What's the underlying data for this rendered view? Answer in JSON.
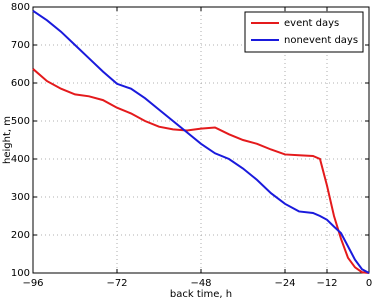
{
  "chart_data": {
    "type": "line",
    "x_label": "back time, h",
    "y_label": "height, m",
    "x": [
      -96,
      -92,
      -88,
      -84,
      -80,
      -76,
      -72,
      -68,
      -64,
      -60,
      -56,
      -52,
      -48,
      -44,
      -40,
      -36,
      -32,
      -28,
      -24,
      -20,
      -16,
      -14,
      -12,
      -10,
      -8,
      -6,
      -4,
      -2,
      0
    ],
    "series": [
      {
        "name": "event days",
        "color": "#e41a1c",
        "values": [
          637,
          605,
          585,
          570,
          565,
          555,
          535,
          520,
          500,
          485,
          478,
          475,
          480,
          483,
          465,
          450,
          440,
          425,
          412,
          410,
          408,
          400,
          330,
          250,
          190,
          140,
          115,
          102,
          100
        ]
      },
      {
        "name": "nonevent days",
        "color": "#1a1adc",
        "values": [
          790,
          765,
          735,
          700,
          665,
          630,
          598,
          585,
          560,
          530,
          500,
          470,
          440,
          415,
          400,
          375,
          345,
          310,
          282,
          262,
          258,
          250,
          240,
          222,
          205,
          170,
          135,
          110,
          100
        ]
      }
    ],
    "xlim": [
      -96,
      0
    ],
    "ylim": [
      100,
      800
    ],
    "xticks": [
      {
        "value": -96,
        "label": "−96"
      },
      {
        "value": -72,
        "label": "−72"
      },
      {
        "value": -48,
        "label": "−48"
      },
      {
        "value": -24,
        "label": "−24"
      },
      {
        "value": -12,
        "label": "−12"
      },
      0
    ],
    "yticks": [
      100,
      200,
      300,
      400,
      500,
      600,
      700,
      800
    ],
    "grid": true,
    "legend": "upper right"
  }
}
